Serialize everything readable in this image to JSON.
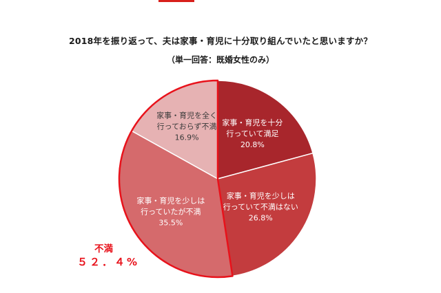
{
  "header": {
    "title": "2018年を振り返って、夫は家事・育児に十分取り組んでいたと思いますか？",
    "subtitle": "（単一回答：既婚女性のみ）"
  },
  "annotation": {
    "label": "不満",
    "value": "５２．４%"
  },
  "chart_data": {
    "type": "pie",
    "start": "top, clockwise",
    "slices": [
      {
        "label_lines": [
          "家事・育児を十分",
          "行っていて満足"
        ],
        "percent_label": "20.8%",
        "value": 20.8,
        "color": "#a8262c"
      },
      {
        "label_lines": [
          "家事・育児を少しは",
          "行っていて不満はない"
        ],
        "percent_label": "26.8%",
        "value": 26.8,
        "color": "#c33c3e"
      },
      {
        "label_lines": [
          "家事・育児を少しは",
          "行っていたが不満"
        ],
        "percent_label": "35.5%",
        "value": 35.5,
        "color": "#d56a6c"
      },
      {
        "label_lines": [
          "家事・育児を全く",
          "行っておらず不満"
        ],
        "percent_label": "16.9%",
        "value": 16.9,
        "color": "#e6b2b3"
      }
    ],
    "highlight": {
      "slices": [
        2,
        3
      ],
      "color": "#e8121b"
    }
  }
}
